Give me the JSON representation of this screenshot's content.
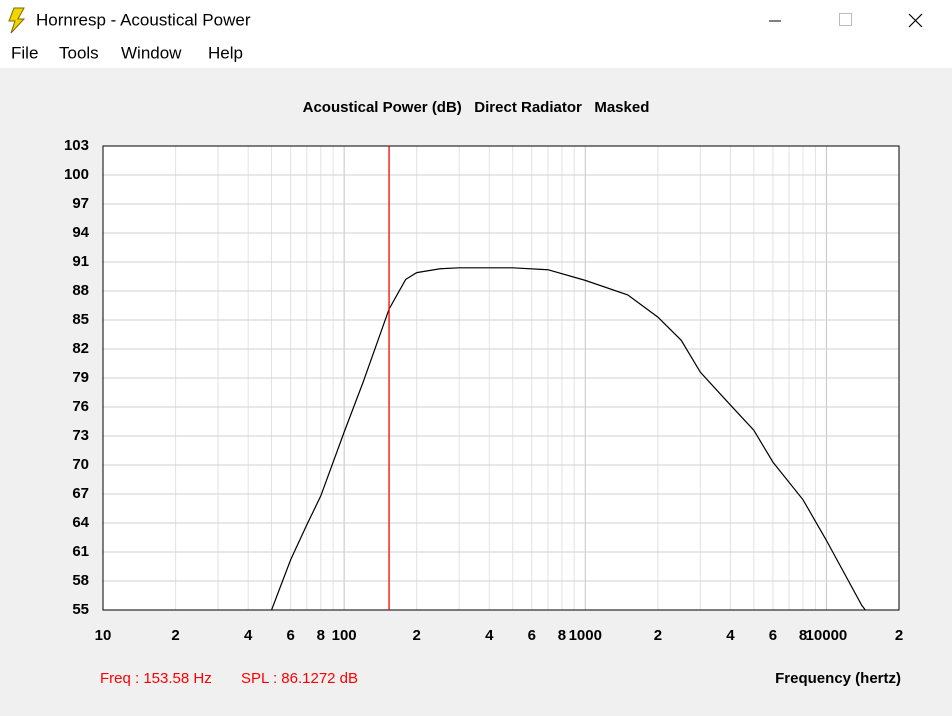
{
  "window": {
    "title": "Hornresp - Acoustical Power"
  },
  "menu": [
    "File",
    "Tools",
    "Window",
    "Help"
  ],
  "chart_data": {
    "type": "line",
    "title": "Acoustical Power (dB)   Direct Radiator   Masked",
    "x_label": "Frequency (hertz)",
    "log_x": true,
    "grid": true,
    "color": "#000000",
    "xlim": [
      10,
      20000
    ],
    "xticks": [
      10,
      {
        "value": 20,
        "label": "2"
      },
      {
        "value": 40,
        "label": "4"
      },
      {
        "value": 60,
        "label": "6"
      },
      {
        "value": 80,
        "label": "8"
      },
      100,
      {
        "value": 200,
        "label": "2"
      },
      {
        "value": 400,
        "label": "4"
      },
      {
        "value": 600,
        "label": "6"
      },
      {
        "value": 800,
        "label": "8"
      },
      1000,
      {
        "value": 2000,
        "label": "2"
      },
      {
        "value": 4000,
        "label": "4"
      },
      {
        "value": 6000,
        "label": "6"
      },
      {
        "value": 8000,
        "label": "8"
      },
      10000,
      {
        "value": 20000,
        "label": "2"
      }
    ],
    "minor_xticks": [
      30,
      50,
      70,
      90,
      300,
      500,
      700,
      900,
      3000,
      5000,
      7000,
      9000
    ],
    "ylim": [
      55,
      103
    ],
    "yticks": [
      55,
      58,
      61,
      64,
      67,
      70,
      73,
      76,
      79,
      82,
      85,
      88,
      91,
      94,
      97,
      100,
      103
    ],
    "x": [
      50,
      60,
      70,
      80,
      100,
      120,
      153.58,
      180,
      200,
      250,
      300,
      500,
      700,
      1000,
      1500,
      2000,
      2500,
      3000,
      4000,
      5000,
      6000,
      8000,
      10000,
      14000,
      14500
    ],
    "values": [
      55,
      60.2,
      63.8,
      66.8,
      73.4,
      78.6,
      86.1272,
      89.2,
      89.9,
      90.3,
      90.4,
      90.4,
      90.2,
      89.1,
      87.6,
      85.3,
      82.9,
      79.6,
      76.2,
      73.6,
      70.3,
      66.4,
      62.2,
      55.5,
      55
    ],
    "cursor": {
      "x": 153.58,
      "color": "#ff0000"
    },
    "readout": {
      "freq": "Freq : 153.58 Hz",
      "spl": "SPL : 86.1272 dB",
      "color": "#ff0000"
    }
  }
}
